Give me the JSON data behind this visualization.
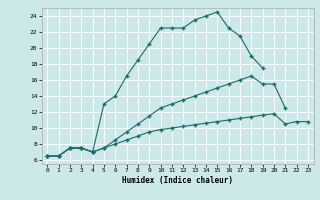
{
  "xlabel": "Humidex (Indice chaleur)",
  "bg_color": "#cce8e8",
  "line_color": "#1a6b6b",
  "grid_color": "#ffffff",
  "xlim": [
    -0.5,
    23.5
  ],
  "ylim": [
    5.5,
    25.0
  ],
  "xticks": [
    0,
    1,
    2,
    3,
    4,
    5,
    6,
    7,
    8,
    9,
    10,
    11,
    12,
    13,
    14,
    15,
    16,
    17,
    18,
    19,
    20,
    21,
    22,
    23
  ],
  "yticks": [
    6,
    8,
    10,
    12,
    14,
    16,
    18,
    20,
    22,
    24
  ],
  "line1_x": [
    0,
    1,
    2,
    3,
    4,
    5,
    6,
    7,
    8,
    9,
    10,
    11,
    12,
    13,
    14,
    15,
    16,
    17,
    18,
    19
  ],
  "line1_y": [
    6.5,
    6.5,
    7.5,
    7.5,
    7.0,
    13.0,
    14.0,
    16.5,
    18.5,
    20.5,
    22.5,
    22.5,
    22.5,
    23.5,
    24.0,
    24.5,
    22.5,
    21.5,
    19.0,
    17.5
  ],
  "line2_x": [
    0,
    1,
    2,
    3,
    4,
    5,
    6,
    7,
    8,
    9,
    10,
    11,
    12,
    13,
    14,
    15,
    16,
    17,
    18,
    19,
    20,
    21
  ],
  "line2_y": [
    6.5,
    6.5,
    7.5,
    7.5,
    7.0,
    7.5,
    8.5,
    9.5,
    10.5,
    11.5,
    12.5,
    13.0,
    13.5,
    14.0,
    14.5,
    15.0,
    15.5,
    16.0,
    16.5,
    15.5,
    15.5,
    12.5
  ],
  "line3_x": [
    0,
    1,
    2,
    3,
    4,
    5,
    6,
    7,
    8,
    9,
    10,
    11,
    12,
    13,
    14,
    15,
    16,
    17,
    18,
    19,
    20,
    21,
    22,
    23
  ],
  "line3_y": [
    6.5,
    6.5,
    7.5,
    7.5,
    7.0,
    7.5,
    8.0,
    8.5,
    9.0,
    9.5,
    9.8,
    10.0,
    10.2,
    10.4,
    10.6,
    10.8,
    11.0,
    11.2,
    11.4,
    11.6,
    11.8,
    10.5,
    10.8,
    10.8
  ]
}
